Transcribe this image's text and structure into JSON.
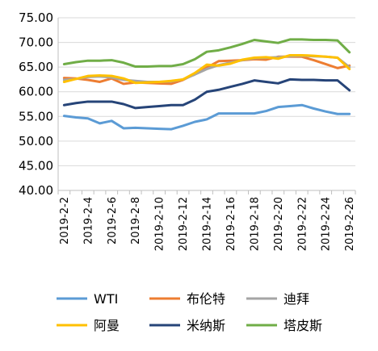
{
  "chart_data": {
    "type": "line",
    "title": "",
    "xlabel": "",
    "ylabel": "",
    "ylim": [
      40,
      75
    ],
    "y_step": 5,
    "y_tick_decimals": 2,
    "grid": true,
    "legend_position": "bottom",
    "x": [
      "2019-2-2",
      "2019-2-3",
      "2019-2-4",
      "2019-2-5",
      "2019-2-6",
      "2019-2-7",
      "2019-2-8",
      "2019-2-9",
      "2019-2-10",
      "2019-2-11",
      "2019-2-12",
      "2019-2-13",
      "2019-2-14",
      "2019-2-15",
      "2019-2-16",
      "2019-2-17",
      "2019-2-18",
      "2019-2-19",
      "2019-2-20",
      "2019-2-21",
      "2019-2-22",
      "2019-2-23",
      "2019-2-24",
      "2019-2-25",
      "2019-2-26"
    ],
    "x_tick_labels": [
      "2019-2-2",
      "2019-2-4",
      "2019-2-6",
      "2019-2-8",
      "2019-2-10",
      "2019-2-12",
      "2019-2-14",
      "2019-2-16",
      "2019-2-18",
      "2019-2-20",
      "2019-2-22",
      "2019-2-24",
      "2019-2-26"
    ],
    "series": [
      {
        "name": "WTI",
        "color": "#5b9bd5",
        "values": [
          55.1,
          54.8,
          54.6,
          53.6,
          54.1,
          52.6,
          52.7,
          52.6,
          52.5,
          52.4,
          53.1,
          53.9,
          54.4,
          55.6,
          55.6,
          55.6,
          55.6,
          56.1,
          56.9,
          57.1,
          57.3,
          56.6,
          56.0,
          55.5,
          55.5
        ]
      },
      {
        "name": "布伦特",
        "color": "#ed7d31",
        "values": [
          62.8,
          62.7,
          62.4,
          62.0,
          62.7,
          61.6,
          61.9,
          61.8,
          61.7,
          61.6,
          62.4,
          63.6,
          64.9,
          66.2,
          66.3,
          66.4,
          66.6,
          66.5,
          67.1,
          67.1,
          67.1,
          66.4,
          65.6,
          64.8,
          65.3
        ]
      },
      {
        "name": "迪拜",
        "color": "#a5a5a5",
        "values": [
          62.4,
          62.6,
          63.0,
          63.1,
          62.9,
          62.4,
          62.2,
          62.0,
          62.0,
          62.1,
          62.5,
          63.5,
          64.6,
          65.4,
          65.9,
          66.4,
          66.8,
          66.9,
          67.0,
          67.2,
          67.3,
          67.2,
          67.1,
          66.9,
          65.0
        ]
      },
      {
        "name": "阿曼",
        "color": "#ffc000",
        "values": [
          62.0,
          62.6,
          63.2,
          63.3,
          63.2,
          62.7,
          61.8,
          61.9,
          62.0,
          62.2,
          62.5,
          63.8,
          65.5,
          65.3,
          65.7,
          66.5,
          66.9,
          67.0,
          66.7,
          67.4,
          67.4,
          67.3,
          67.1,
          66.9,
          64.6
        ]
      },
      {
        "name": "米纳斯",
        "color": "#264478",
        "values": [
          57.3,
          57.7,
          58.0,
          58.0,
          58.0,
          57.5,
          56.7,
          56.9,
          57.1,
          57.3,
          57.3,
          58.4,
          60.0,
          60.4,
          61.0,
          61.6,
          62.3,
          62.0,
          61.7,
          62.5,
          62.4,
          62.4,
          62.3,
          62.3,
          60.3
        ]
      },
      {
        "name": "塔皮斯",
        "color": "#70ad47",
        "values": [
          65.6,
          66.0,
          66.3,
          66.3,
          66.4,
          65.9,
          65.1,
          65.1,
          65.2,
          65.2,
          65.6,
          66.6,
          68.1,
          68.4,
          69.0,
          69.7,
          70.5,
          70.2,
          69.9,
          70.6,
          70.6,
          70.5,
          70.5,
          70.4,
          68.0
        ]
      }
    ]
  }
}
